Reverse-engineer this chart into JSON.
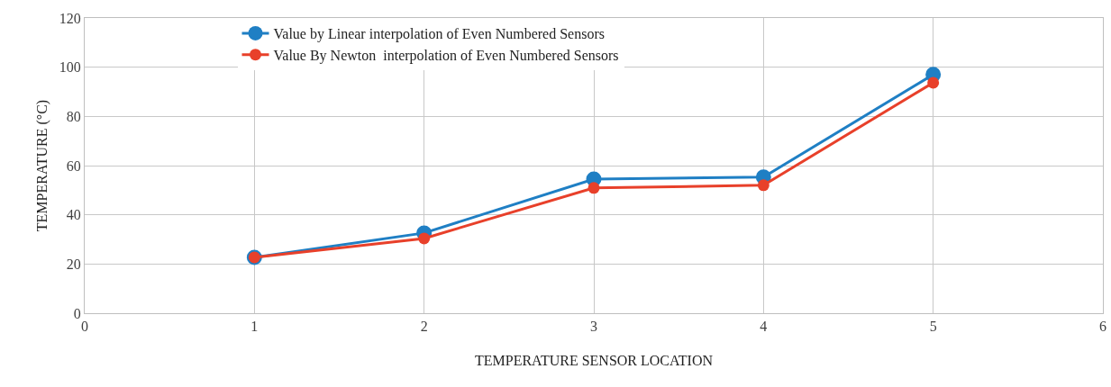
{
  "chart_data": {
    "type": "line",
    "xlabel": "TEMPERATURE SENSOR LOCATION",
    "ylabel": "TEMPERATURE (°C)",
    "x": [
      1,
      2,
      3,
      4,
      5
    ],
    "series": [
      {
        "name": "Value by Linear interpolation of Even Numbered Sensors",
        "color": "#1f7fc4",
        "values": [
          22.7,
          32.6,
          54.5,
          55.3,
          97
        ]
      },
      {
        "name": "Value By Newton  interpolation of Even Numbered Sensors",
        "color": "#e8402a",
        "values": [
          22.7,
          30.4,
          50.9,
          52,
          93.7
        ]
      }
    ],
    "xlim": [
      0,
      6
    ],
    "xticks": [
      0,
      1,
      2,
      3,
      4,
      5,
      6
    ],
    "ylim": [
      0,
      120
    ],
    "yticks": [
      0,
      20,
      40,
      60,
      80,
      100,
      120
    ],
    "grid": true,
    "legend": "top left",
    "marker": "circle",
    "line_style": "solid"
  }
}
